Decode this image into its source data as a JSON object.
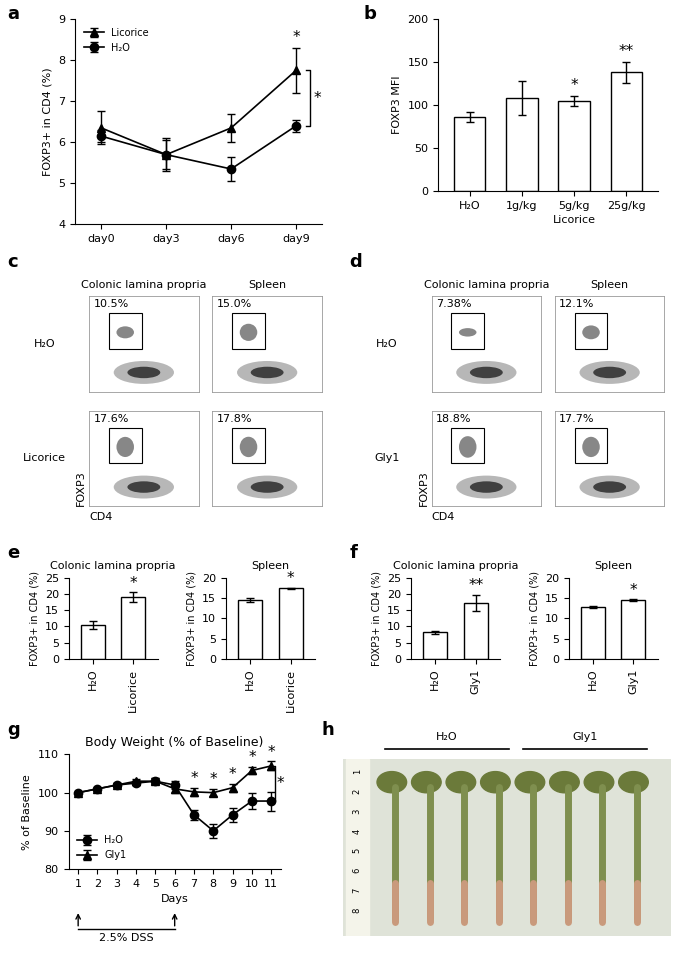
{
  "chart_data": [
    {
      "panel": "a",
      "type": "line",
      "x": [
        "day0",
        "day3",
        "day6",
        "day9"
      ],
      "y_label": "FOXP3+ in CD4 (%)",
      "ylim": [
        4,
        9
      ],
      "yticks": [
        4,
        5,
        6,
        7,
        8,
        9
      ],
      "legend": "upper left",
      "series": [
        {
          "name": "Licorice",
          "color": "#000000",
          "marker": "triangle",
          "values": [
            6.35,
            5.7,
            6.35,
            7.75
          ],
          "errors": [
            0.4,
            0.4,
            0.35,
            0.55
          ]
        },
        {
          "name": "H₂O",
          "color": "#000000",
          "marker": "circle",
          "values": [
            6.15,
            5.7,
            5.35,
            6.4
          ],
          "errors": [
            0.15,
            0.35,
            0.3,
            0.15
          ]
        }
      ],
      "annotations": [
        {
          "text": "*",
          "x": "day9",
          "series": "Licorice"
        },
        {
          "text": "*",
          "x": "day9",
          "bracket": [
            "Licorice",
            "H₂O"
          ]
        }
      ]
    },
    {
      "panel": "b",
      "type": "bar",
      "categories": [
        "H₂O",
        "1g/kg",
        "5g/kg",
        "25g/kg"
      ],
      "values": [
        86,
        108,
        105,
        138
      ],
      "errors": [
        6,
        20,
        6,
        12
      ],
      "y_label": "FOXP3 MFI",
      "color": "#ffffff",
      "group_label": {
        "text": "Licorice",
        "categories": [
          "1g/kg",
          "5g/kg",
          "25g/kg"
        ]
      },
      "ylim": [
        0,
        200
      ],
      "yticks": [
        0,
        50,
        100,
        150,
        200
      ],
      "annotations": [
        {
          "text": "*",
          "category": "5g/kg"
        },
        {
          "text": "**",
          "category": "25g/kg"
        }
      ]
    },
    {
      "panel": "c",
      "type": "flow",
      "columns": [
        "Colonic lamina propria",
        "Spleen"
      ],
      "rows": [
        "H₂O",
        "Licorice"
      ],
      "values": [
        [
          10.5,
          15.0
        ],
        [
          17.6,
          17.8
        ]
      ],
      "value_labels": [
        [
          "10.5%",
          "15.0%"
        ],
        [
          "17.6%",
          "17.8%"
        ]
      ],
      "x_label": "CD4",
      "y_label": "FOXP3",
      "tick_labels": false
    },
    {
      "panel": "d",
      "type": "flow",
      "columns": [
        "Colonic lamina propria",
        "Spleen"
      ],
      "rows": [
        "H₂O",
        "Gly1"
      ],
      "values": [
        [
          7.38,
          12.1
        ],
        [
          18.8,
          17.7
        ]
      ],
      "value_labels": [
        [
          "7.38%",
          "12.1%"
        ],
        [
          "18.8%",
          "17.7%"
        ]
      ],
      "x_label": "CD4",
      "y_label": "FOXP3",
      "tick_labels": false
    },
    {
      "panel": "e",
      "type": "bar",
      "title": "Colonic lamina propria",
      "categories": [
        "H₂O",
        "Licorice"
      ],
      "values": [
        10.5,
        19.0
      ],
      "errors": [
        1.2,
        1.5
      ],
      "y_label": "FOXP3+ in CD4 (%)",
      "color": "#ffffff",
      "ylim": [
        0,
        25
      ],
      "yticks": [
        0,
        5,
        10,
        15,
        20,
        25
      ],
      "annotations": [
        {
          "text": "*",
          "category": "Licorice"
        }
      ]
    },
    {
      "type": "bar",
      "title": "Spleen",
      "categories": [
        "H₂O",
        "Licorice"
      ],
      "values": [
        14.6,
        17.4
      ],
      "errors": [
        0.5,
        0.2
      ],
      "y_label": "FOXP3+ in CD4 (%)",
      "color": "#ffffff",
      "ylim": [
        0,
        20
      ],
      "yticks": [
        0,
        5,
        10,
        15,
        20
      ],
      "annotations": [
        {
          "text": "*",
          "category": "Licorice"
        }
      ]
    },
    {
      "panel": "f",
      "type": "bar",
      "title": "Colonic lamina propria",
      "categories": [
        "H₂O",
        "Gly1"
      ],
      "values": [
        8.2,
        17.3
      ],
      "errors": [
        0.4,
        2.5
      ],
      "y_label": "FOXP3+ in CD4 (%)",
      "color": "#ffffff",
      "ylim": [
        0,
        25
      ],
      "yticks": [
        0,
        5,
        10,
        15,
        20,
        25
      ],
      "annotations": [
        {
          "text": "**",
          "category": "Gly1"
        }
      ]
    },
    {
      "type": "bar",
      "title": "Spleen",
      "categories": [
        "H₂O",
        "Gly1"
      ],
      "values": [
        12.8,
        14.6
      ],
      "errors": [
        0.3,
        0.2
      ],
      "y_label": "FOXP3+ in CD4 (%)",
      "color": "#ffffff",
      "ylim": [
        0,
        20
      ],
      "yticks": [
        0,
        5,
        10,
        15,
        20
      ],
      "annotations": [
        {
          "text": "*",
          "category": "Gly1"
        }
      ]
    },
    {
      "panel": "g",
      "type": "line",
      "title": "Body Weight (% of Baseline)",
      "x": [
        1,
        2,
        3,
        4,
        5,
        6,
        7,
        8,
        9,
        10,
        11
      ],
      "x_label": "Days",
      "y_label": "% of Baseline",
      "xlim": [
        0.5,
        11.5
      ],
      "xticks": [
        1,
        2,
        3,
        4,
        5,
        6,
        7,
        8,
        9,
        10,
        11
      ],
      "ylim": [
        80,
        110
      ],
      "yticks": [
        80,
        90,
        100,
        110
      ],
      "legend": "lower left",
      "series": [
        {
          "name": "H₂O",
          "color": "#000000",
          "marker": "circle",
          "values": [
            100,
            101,
            102,
            102.5,
            103,
            102,
            94.2,
            90,
            94.2,
            97.8,
            97.8
          ],
          "errors": [
            0,
            0.3,
            0.5,
            0.5,
            0.8,
            1,
            1.3,
            1.8,
            1.8,
            2,
            2.5
          ]
        },
        {
          "name": "Gly1",
          "color": "#000000",
          "marker": "triangle",
          "values": [
            100,
            101,
            102,
            103,
            103,
            101,
            100.2,
            100,
            101.3,
            105.8,
            107
          ],
          "errors": [
            0,
            0.3,
            0.5,
            0.5,
            0.8,
            1,
            1,
            1,
            1,
            1,
            1.2
          ]
        }
      ],
      "annotations": [
        {
          "text": "*",
          "x": 7
        },
        {
          "text": "*",
          "x": 8
        },
        {
          "text": "*",
          "x": 9
        },
        {
          "text": "*",
          "x": 10
        },
        {
          "text": "*",
          "x": 11
        },
        {
          "text": "*",
          "x": 11,
          "bracket": [
            "H₂O",
            "Gly1"
          ]
        }
      ],
      "dss": {
        "text": "2.5% DSS",
        "start": 1,
        "end": 6
      }
    },
    {
      "panel": "h",
      "type": "photo",
      "groups": [
        "H₂O",
        "Gly1"
      ],
      "ruler_labels": [
        1,
        2,
        3,
        4,
        5,
        6,
        7,
        8
      ]
    }
  ]
}
